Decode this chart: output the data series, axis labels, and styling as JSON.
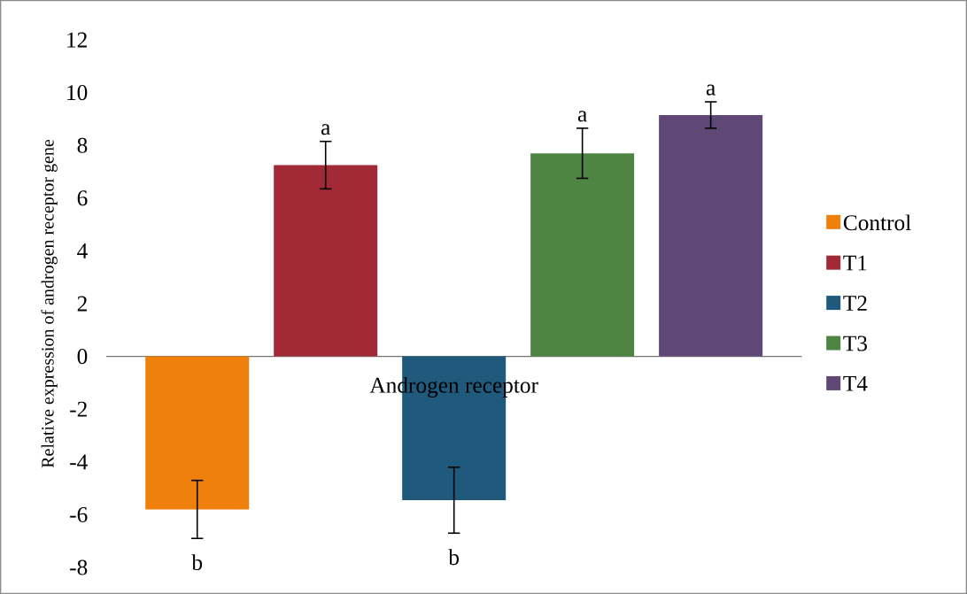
{
  "chart_data": {
    "type": "bar",
    "ylabel": "Relative expression of androgen receptor gene",
    "categories": [
      "Androgen receptor"
    ],
    "series": [
      {
        "name": "Control",
        "color": "#f0800c",
        "values": [
          -5.8
        ],
        "errors": [
          1.1
        ],
        "value_labels": [
          "b"
        ]
      },
      {
        "name": "T1",
        "color": "#a12a36",
        "values": [
          7.25
        ],
        "errors": [
          0.9
        ],
        "value_labels": [
          "a"
        ]
      },
      {
        "name": "T2",
        "color": "#1f5a7d",
        "values": [
          -5.45
        ],
        "errors": [
          1.25
        ],
        "value_labels": [
          "b"
        ]
      },
      {
        "name": "T3",
        "color": "#4e8542",
        "values": [
          7.7
        ],
        "errors": [
          0.95
        ],
        "value_labels": [
          "a"
        ]
      },
      {
        "name": "T4",
        "color": "#5f4876",
        "values": [
          9.15
        ],
        "errors": [
          0.5
        ],
        "value_labels": [
          "a"
        ]
      }
    ],
    "ylim": [
      -8,
      12
    ],
    "yticks": [
      -8,
      -6,
      -4,
      -2,
      0,
      2,
      4,
      6,
      8,
      10,
      12
    ],
    "legend": "right"
  }
}
